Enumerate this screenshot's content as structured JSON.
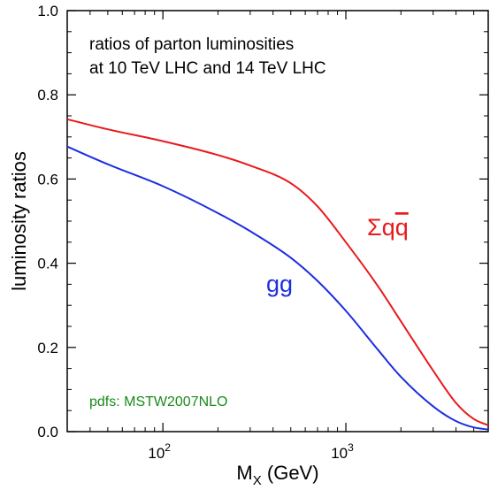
{
  "chart_data": {
    "type": "line",
    "xscale": "log",
    "xlim": [
      30,
      6000
    ],
    "ylim": [
      0,
      1.0
    ],
    "grid": false,
    "xlabel": {
      "main": "M",
      "sub": "X",
      "rest": " (GeV)"
    },
    "ylabel": "luminosity ratios",
    "x_ticks": [
      {
        "value": 100,
        "base": "10",
        "exp": "2"
      },
      {
        "value": 1000,
        "base": "10",
        "exp": "3"
      }
    ],
    "y_ticks": [
      "0.0",
      "0.2",
      "0.4",
      "0.6",
      "0.8",
      "1.0"
    ],
    "y_tick_values": [
      0.0,
      0.2,
      0.4,
      0.6,
      0.8,
      1.0
    ],
    "annotation_lines": [
      "ratios of parton luminosities",
      "at 10 TeV LHC and 14 TeV LHC"
    ],
    "credit": "pdfs: MSTW2007NLO",
    "series": [
      {
        "name": "Σqq̄",
        "label_main": "Σq",
        "label_bar": "q",
        "color": "#e8191c",
        "x": [
          30,
          50,
          100,
          200,
          300,
          500,
          700,
          1000,
          1500,
          2000,
          3000,
          4000,
          5000,
          6000
        ],
        "y": [
          0.742,
          0.718,
          0.69,
          0.657,
          0.632,
          0.59,
          0.535,
          0.45,
          0.345,
          0.262,
          0.145,
          0.068,
          0.03,
          0.015
        ]
      },
      {
        "name": "gg",
        "label_main": "gg",
        "color": "#1c2ee0",
        "x": [
          30,
          50,
          100,
          200,
          300,
          500,
          700,
          1000,
          1500,
          2000,
          3000,
          4000,
          5000,
          6000
        ],
        "y": [
          0.677,
          0.635,
          0.583,
          0.519,
          0.476,
          0.413,
          0.358,
          0.287,
          0.194,
          0.13,
          0.06,
          0.025,
          0.01,
          0.005
        ]
      }
    ]
  }
}
